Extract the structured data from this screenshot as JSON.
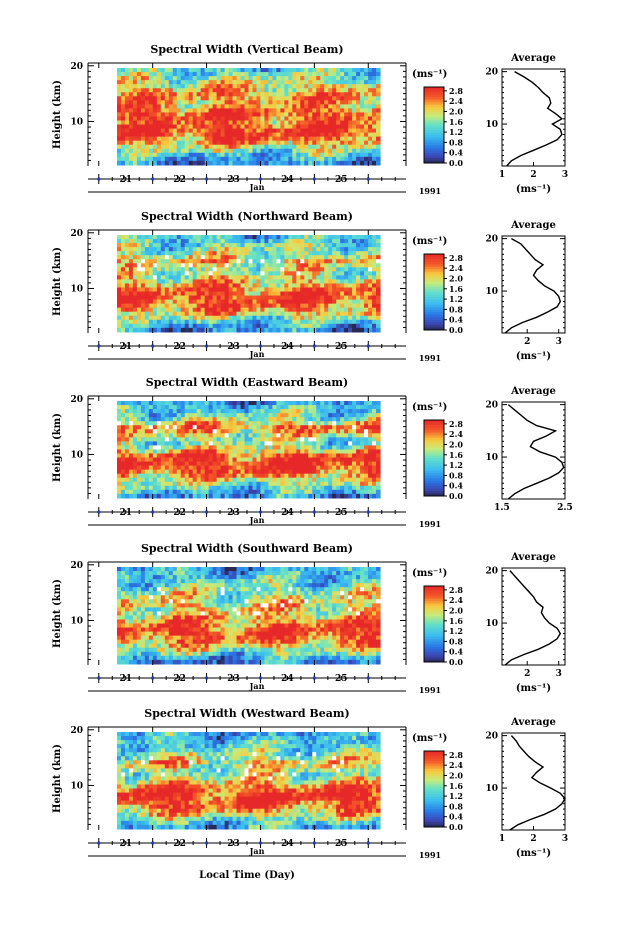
{
  "figure": {
    "xaxis_label": "Local Time (Day)",
    "colorbar_unit": "(ms⁻¹)",
    "colorbar_ticks": [
      "0.0",
      "0.4",
      "0.8",
      "1.2",
      "1.6",
      "2.0",
      "2.4",
      "2.8"
    ],
    "month": "Jan",
    "year": "1991",
    "ylabel": "Height (km)",
    "profile_title": "Average",
    "profile_xlabel": "(ms⁻¹)"
  },
  "chart_data": [
    {
      "type": "heatmap",
      "title": "Spectral Width (Vertical Beam)",
      "ylabel": "Height (km)",
      "yticks": [
        10,
        20
      ],
      "ylim": [
        2,
        20.5
      ],
      "xticks": [
        "21",
        "22",
        "23",
        "24",
        "25"
      ],
      "xlim": [
        20.3,
        26.2
      ],
      "colorbar_label": "(ms⁻¹)",
      "colorbar_range": [
        0.0,
        2.8
      ],
      "profile": {
        "title": "Average",
        "xlabel": "(ms⁻¹)",
        "xticks": [
          "1",
          "2",
          "3"
        ],
        "xlim": [
          1,
          3
        ],
        "heights": [
          2,
          3,
          4,
          5,
          6,
          7,
          8,
          9,
          10,
          11,
          12,
          13,
          14,
          15,
          16,
          17,
          18,
          19,
          20
        ],
        "values": [
          1.15,
          1.3,
          1.6,
          2.0,
          2.4,
          2.75,
          2.9,
          2.85,
          2.6,
          2.9,
          2.7,
          2.45,
          2.55,
          2.5,
          2.3,
          2.15,
          1.95,
          1.7,
          1.4
        ]
      }
    },
    {
      "type": "heatmap",
      "title": "Spectral Width (Northward Beam)",
      "ylabel": "Height (km)",
      "yticks": [
        10,
        20
      ],
      "ylim": [
        2,
        20.5
      ],
      "xticks": [
        "21",
        "22",
        "23",
        "24",
        "25"
      ],
      "xlim": [
        20.3,
        26.2
      ],
      "colorbar_label": "(ms⁻¹)",
      "colorbar_range": [
        0.0,
        2.8
      ],
      "profile": {
        "title": "Average",
        "xlabel": "(ms⁻¹)",
        "xticks": [
          "2",
          "3"
        ],
        "xlim": [
          1.2,
          3.2
        ],
        "heights": [
          2,
          3,
          4,
          5,
          6,
          7,
          8,
          9,
          10,
          11,
          12,
          13,
          14,
          15,
          16,
          17,
          18,
          19,
          20
        ],
        "values": [
          1.3,
          1.5,
          1.85,
          2.3,
          2.65,
          2.95,
          3.05,
          3.0,
          2.85,
          2.55,
          2.35,
          2.2,
          2.3,
          2.5,
          2.25,
          2.1,
          1.95,
          1.8,
          1.5
        ]
      }
    },
    {
      "type": "heatmap",
      "title": "Spectral Width (Eastward Beam)",
      "ylabel": "Height (km)",
      "yticks": [
        10,
        20
      ],
      "ylim": [
        2,
        20.5
      ],
      "xticks": [
        "21",
        "22",
        "23",
        "24",
        "25"
      ],
      "xlim": [
        20.3,
        26.2
      ],
      "colorbar_label": "(ms⁻¹)",
      "colorbar_range": [
        0.0,
        2.8
      ],
      "profile": {
        "title": "Average",
        "xlabel": "",
        "xticks": [
          "1.5",
          "2.5"
        ],
        "xlim": [
          1.5,
          2.5
        ],
        "heights": [
          2,
          3,
          4,
          5,
          6,
          7,
          8,
          9,
          10,
          11,
          12,
          13,
          14,
          15,
          16,
          17,
          18,
          19,
          20
        ],
        "values": [
          1.6,
          1.7,
          1.85,
          2.05,
          2.25,
          2.4,
          2.48,
          2.45,
          2.35,
          2.1,
          1.95,
          2.0,
          2.2,
          2.35,
          2.05,
          1.9,
          1.8,
          1.7,
          1.6
        ]
      }
    },
    {
      "type": "heatmap",
      "title": "Spectral Width (Southward Beam)",
      "ylabel": "Height (km)",
      "yticks": [
        10,
        20
      ],
      "ylim": [
        2,
        20.5
      ],
      "xticks": [
        "21",
        "22",
        "23",
        "24",
        "25"
      ],
      "xlim": [
        20.3,
        26.2
      ],
      "colorbar_label": "(ms⁻¹)",
      "colorbar_range": [
        0.0,
        2.8
      ],
      "profile": {
        "title": "Average",
        "xlabel": "(ms⁻¹)",
        "xticks": [
          "2",
          "3"
        ],
        "xlim": [
          1.2,
          3.2
        ],
        "heights": [
          2,
          3,
          4,
          5,
          6,
          7,
          8,
          9,
          10,
          11,
          12,
          13,
          14,
          15,
          16,
          17,
          18,
          19,
          20
        ],
        "values": [
          1.3,
          1.5,
          1.9,
          2.35,
          2.7,
          2.95,
          3.05,
          2.95,
          2.7,
          2.55,
          2.45,
          2.5,
          2.3,
          2.2,
          2.05,
          1.9,
          1.75,
          1.6,
          1.45
        ]
      }
    },
    {
      "type": "heatmap",
      "title": "Spectral Width (Westward Beam)",
      "ylabel": "Height (km)",
      "yticks": [
        10,
        20
      ],
      "ylim": [
        2,
        20.5
      ],
      "xticks": [
        "21",
        "22",
        "23",
        "24",
        "25"
      ],
      "xlim": [
        20.3,
        26.2
      ],
      "colorbar_label": "(ms⁻¹)",
      "colorbar_range": [
        0.0,
        2.8
      ],
      "profile": {
        "title": "Average",
        "xlabel": "(ms⁻¹)",
        "xticks": [
          "1",
          "2",
          "3"
        ],
        "xlim": [
          1,
          3
        ],
        "heights": [
          2,
          3,
          4,
          5,
          6,
          7,
          8,
          9,
          10,
          11,
          12,
          13,
          14,
          15,
          16,
          17,
          18,
          19,
          20
        ],
        "values": [
          1.25,
          1.5,
          1.9,
          2.35,
          2.7,
          2.9,
          3.0,
          2.85,
          2.55,
          2.2,
          1.95,
          2.1,
          2.3,
          2.05,
          1.85,
          1.7,
          1.55,
          1.45,
          1.3
        ]
      }
    }
  ]
}
